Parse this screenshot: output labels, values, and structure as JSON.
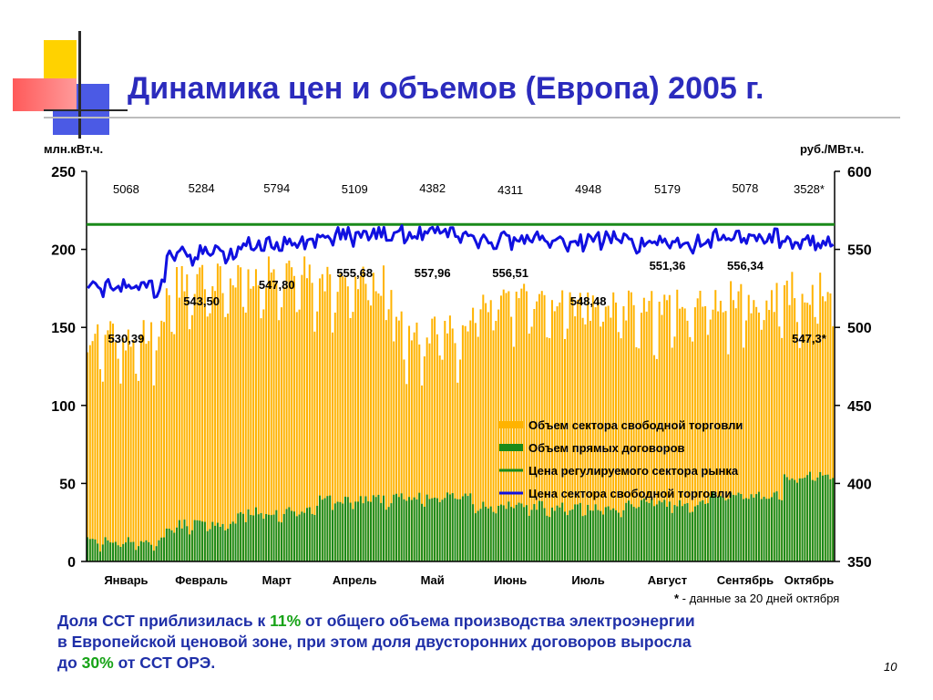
{
  "title": "Динамика цен и объемов (Европа) 2005 г.",
  "left_unit": "млн.кВт.ч.",
  "right_unit": "руб./МВт.ч.",
  "footnote": {
    "star": "*",
    "text": " - данные за 20 дней октября"
  },
  "note": {
    "line1_a": "Доля ССТ приблизилась к ",
    "line1_b": "11%",
    "line1_c": " от общего объема производства электроэнергии",
    "line2": "в Европейской ценовой зоне, при этом доля двусторонних договоров выросла",
    "line3_a": "до ",
    "line3_b": "30%",
    "line3_c": " от ССТ ОРЭ."
  },
  "page_number": "10",
  "colors": {
    "title": "#2b2bbd",
    "free_volume": "#ffb300",
    "direct_contracts": "#1a8a1a",
    "regulated_price": "#1a8a1a",
    "free_price": "#1010e0",
    "note_highlight": "#17a317"
  },
  "chart_data": {
    "type": "bar+line",
    "x_label": "",
    "y_left": {
      "label": "млн.кВт.ч.",
      "ticks": [
        "0",
        "50",
        "100",
        "150",
        "200",
        "250"
      ],
      "range": [
        0,
        250
      ]
    },
    "y_right": {
      "label": "руб./МВт.ч.",
      "ticks": [
        "350",
        "400",
        "450",
        "500",
        "550",
        "600"
      ],
      "range": [
        350,
        600
      ]
    },
    "months": [
      "Январь",
      "Февраль",
      "Март",
      "Апрель",
      "Май",
      "Июнь",
      "Июль",
      "Август",
      "Сентябрь",
      "Октябрь"
    ],
    "days_in_month": [
      31,
      28,
      31,
      30,
      31,
      30,
      31,
      31,
      30,
      20
    ],
    "monthly_totals": [
      "5068",
      "5284",
      "5794",
      "5109",
      "4382",
      "4311",
      "4948",
      "5179",
      "5078",
      "3528*"
    ],
    "monthly_avg_price": [
      "530,39",
      "543,50",
      "547,80",
      "555,68",
      "557,96",
      "556,51",
      "548,48",
      "551,36",
      "556,34",
      "547,3*"
    ],
    "regulated_price": 566,
    "free_volume_monthly_typical": [
      145,
      180,
      185,
      180,
      150,
      168,
      165,
      165,
      170,
      175
    ],
    "direct_contracts_monthly_typical": [
      13,
      24,
      32,
      40,
      42,
      36,
      35,
      38,
      43,
      55
    ],
    "free_price_monthly_typical": [
      527,
      548,
      554,
      560,
      561,
      558,
      557,
      555,
      559,
      555
    ],
    "legend": [
      {
        "label": "Объем сектора свободной торговли",
        "kind": "bar",
        "color": "#ffb300"
      },
      {
        "label": "Объем прямых договоров",
        "kind": "bar",
        "color": "#1a8a1a"
      },
      {
        "label": "Цена регулируемого сектора рынка",
        "kind": "line",
        "color": "#1a8a1a"
      },
      {
        "label": "Цена сектора свободной торговли",
        "kind": "line",
        "color": "#1010e0"
      }
    ],
    "legend_position": "lower-right",
    "grid": false,
    "footnote_marker": "*"
  }
}
